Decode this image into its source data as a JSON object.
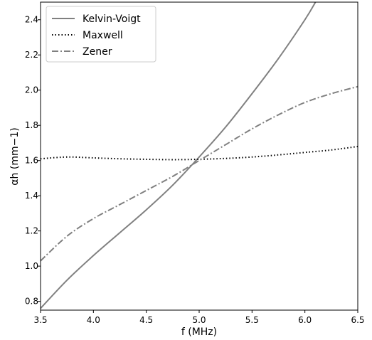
{
  "chart_data": {
    "type": "line",
    "xlabel": "f (MHz)",
    "ylabel": "αh (mm−1)",
    "xlim": [
      3.5,
      6.5
    ],
    "ylim": [
      0.75,
      2.5
    ],
    "xticks": [
      "3.5",
      "4.0",
      "4.5",
      "5.0",
      "5.5",
      "6.0",
      "6.5"
    ],
    "yticks": [
      "0.8",
      "1.0",
      "1.2",
      "1.4",
      "1.6",
      "1.8",
      "2.0",
      "2.2",
      "2.4"
    ],
    "legend_position": "top-left",
    "grid": false,
    "series": [
      {
        "name": "Kelvin-Voigt",
        "style": "solid",
        "color": "#808080",
        "x": [
          3.5,
          3.75,
          4.0,
          4.25,
          4.5,
          4.75,
          5.0,
          5.25,
          5.5,
          5.75,
          6.0,
          6.1
        ],
        "y": [
          0.76,
          0.92,
          1.06,
          1.19,
          1.32,
          1.46,
          1.62,
          1.79,
          1.98,
          2.18,
          2.4,
          2.5
        ]
      },
      {
        "name": "Maxwell",
        "style": "dotted",
        "color": "#000000",
        "x": [
          3.5,
          3.75,
          4.0,
          4.25,
          4.5,
          4.75,
          5.0,
          5.25,
          5.5,
          5.75,
          6.0,
          6.25,
          6.5
        ],
        "y": [
          1.61,
          1.62,
          1.615,
          1.61,
          1.607,
          1.605,
          1.607,
          1.612,
          1.62,
          1.632,
          1.646,
          1.66,
          1.68
        ]
      },
      {
        "name": "Zener",
        "style": "dashdot",
        "color": "#808080",
        "x": [
          3.5,
          3.75,
          4.0,
          4.25,
          4.5,
          4.75,
          5.0,
          5.25,
          5.5,
          5.75,
          6.0,
          6.25,
          6.5
        ],
        "y": [
          1.03,
          1.17,
          1.27,
          1.35,
          1.43,
          1.51,
          1.6,
          1.69,
          1.78,
          1.86,
          1.93,
          1.98,
          2.02
        ]
      }
    ]
  }
}
